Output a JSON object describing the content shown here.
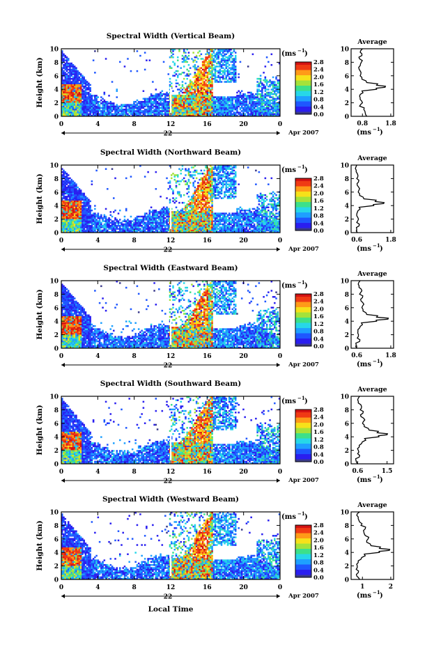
{
  "figure": {
    "x_title": "Local Time",
    "date_label": "Apr 2007",
    "day_label": "22",
    "y_label": "Height (km)",
    "cb_unit": "(ms",
    "cb_unit_exp": "−1",
    "cb_unit_close": ")",
    "avg_title": "Average",
    "avg_unit": "(ms",
    "avg_unit_exp": "−1",
    "avg_unit_close": ")",
    "colorbar_ticks": [
      "0.0",
      "0.4",
      "0.8",
      "1.2",
      "1.6",
      "2.0",
      "2.4",
      "2.8"
    ],
    "colorbar_colors": [
      "#3b3b8c",
      "#2a1ff0",
      "#1f57ff",
      "#1ea0ff",
      "#27d7e8",
      "#3de08a",
      "#a5e23a",
      "#f6e11a",
      "#ff9a18",
      "#f03a15",
      "#d31313"
    ],
    "background": "#ffffff"
  },
  "chart_data": [
    {
      "type": "heatmap",
      "title": "Spectral Width (Vertical Beam)",
      "xlabel": "Local Time",
      "ylabel": "Height (km)",
      "x_ticks": [
        "0",
        "4",
        "8",
        "12",
        "16",
        "20",
        "0"
      ],
      "xlim": [
        0,
        24
      ],
      "y_ticks": [
        "0",
        "2",
        "4",
        "6",
        "8",
        "10"
      ],
      "ylim": [
        0,
        10
      ],
      "colorbar": {
        "unit": "(ms^-1)",
        "range": [
          0.0,
          2.8
        ]
      },
      "average_profile": {
        "title": "Average",
        "xlabel": "(ms^-1)",
        "x_ticks": [
          "0.8",
          "1.8"
        ],
        "xlim": [
          0.4,
          1.9
        ],
        "height_km": [
          0,
          0.5,
          1,
          1.5,
          2,
          2.5,
          3,
          3.5,
          4,
          4.3,
          4.6,
          5,
          5.5,
          6,
          6.5,
          7,
          7.5,
          8,
          8.5,
          9,
          9.5,
          10
        ],
        "width": [
          0.95,
          0.9,
          0.85,
          0.7,
          0.8,
          0.72,
          0.7,
          0.82,
          1.3,
          1.6,
          1.3,
          0.95,
          0.78,
          0.72,
          0.75,
          0.68,
          0.72,
          0.76,
          0.7,
          0.78,
          0.72,
          0.8
        ]
      }
    },
    {
      "type": "heatmap",
      "title": "Spectral Width (Northward Beam)",
      "xlabel": "Local Time",
      "ylabel": "Height (km)",
      "x_ticks": [
        "0",
        "4",
        "8",
        "12",
        "16",
        "20",
        "0"
      ],
      "xlim": [
        0,
        24
      ],
      "y_ticks": [
        "0",
        "2",
        "4",
        "6",
        "8",
        "10"
      ],
      "ylim": [
        0,
        10
      ],
      "colorbar": {
        "unit": "(ms^-1)",
        "range": [
          0.0,
          2.8
        ]
      },
      "average_profile": {
        "title": "Average",
        "xlabel": "(ms^-1)",
        "x_ticks": [
          "0.6",
          "1.8"
        ],
        "xlim": [
          0.4,
          1.9
        ],
        "height_km": [
          0,
          0.5,
          1,
          1.5,
          2,
          2.5,
          3,
          3.5,
          4,
          4.3,
          4.6,
          5,
          5.5,
          6,
          6.5,
          7,
          7.5,
          8,
          8.5,
          9,
          9.5,
          10
        ],
        "width": [
          0.62,
          0.6,
          0.68,
          0.6,
          0.66,
          0.6,
          0.62,
          0.72,
          1.2,
          1.55,
          1.25,
          0.85,
          0.7,
          0.65,
          0.7,
          0.62,
          0.66,
          0.6,
          0.64,
          0.58,
          0.55,
          0.6
        ]
      }
    },
    {
      "type": "heatmap",
      "title": "Spectral Width (Eastward Beam)",
      "xlabel": "Local Time",
      "ylabel": "Height (km)",
      "x_ticks": [
        "0",
        "4",
        "8",
        "12",
        "16",
        "20",
        "0"
      ],
      "xlim": [
        0,
        24
      ],
      "y_ticks": [
        "0",
        "2",
        "4",
        "6",
        "8",
        "10"
      ],
      "ylim": [
        0,
        10
      ],
      "colorbar": {
        "unit": "(ms^-1)",
        "range": [
          0.0,
          2.8
        ]
      },
      "average_profile": {
        "title": "Average",
        "xlabel": "(ms^-1)",
        "x_ticks": [
          "0.6",
          "1.8"
        ],
        "xlim": [
          0.4,
          1.9
        ],
        "height_km": [
          0,
          0.5,
          1,
          1.5,
          2,
          2.5,
          3,
          3.5,
          4,
          4.3,
          4.6,
          5,
          5.5,
          6,
          6.5,
          7,
          7.5,
          8,
          8.5,
          9,
          9.5,
          10
        ],
        "width": [
          0.6,
          0.58,
          0.7,
          0.62,
          0.66,
          0.64,
          0.7,
          0.8,
          1.3,
          1.7,
          1.3,
          0.95,
          0.82,
          0.78,
          0.85,
          0.75,
          0.8,
          0.7,
          0.78,
          0.68,
          0.65,
          0.72
        ]
      }
    },
    {
      "type": "heatmap",
      "title": "Spectral Width (Southward Beam)",
      "xlabel": "Local Time",
      "ylabel": "Height (km)",
      "x_ticks": [
        "0",
        "4",
        "8",
        "12",
        "16",
        "20",
        "0"
      ],
      "xlim": [
        0,
        24
      ],
      "y_ticks": [
        "0",
        "2",
        "4",
        "6",
        "8",
        "10"
      ],
      "ylim": [
        0,
        10
      ],
      "colorbar": {
        "unit": "(ms^-1)",
        "range": [
          0.0,
          2.8
        ]
      },
      "average_profile": {
        "title": "Average",
        "xlabel": "(ms^-1)",
        "x_ticks": [
          "0.6",
          "1.5"
        ],
        "xlim": [
          0.4,
          1.7
        ],
        "height_km": [
          0,
          0.5,
          1,
          1.5,
          2,
          2.5,
          3,
          3.5,
          4,
          4.3,
          4.6,
          5,
          5.5,
          6,
          6.5,
          7,
          7.5,
          8,
          8.5,
          9,
          9.5,
          10
        ],
        "width": [
          0.6,
          0.55,
          0.65,
          0.6,
          0.62,
          0.65,
          0.72,
          0.85,
          1.25,
          1.5,
          1.2,
          0.95,
          0.8,
          0.75,
          0.82,
          0.7,
          0.76,
          0.68,
          0.72,
          0.62,
          0.6,
          0.66
        ]
      }
    },
    {
      "type": "heatmap",
      "title": "Spectral Width (Westward Beam)",
      "xlabel": "Local Time",
      "ylabel": "Height (km)",
      "x_ticks": [
        "0",
        "4",
        "8",
        "12",
        "16",
        "20",
        "0"
      ],
      "xlim": [
        0,
        24
      ],
      "y_ticks": [
        "0",
        "2",
        "4",
        "6",
        "8",
        "10"
      ],
      "ylim": [
        0,
        10
      ],
      "colorbar": {
        "unit": "(ms^-1)",
        "range": [
          0.0,
          2.8
        ]
      },
      "average_profile": {
        "title": "Average",
        "xlabel": "(ms^-1)",
        "x_ticks": [
          "1",
          "2"
        ],
        "xlim": [
          0.6,
          2.1
        ],
        "height_km": [
          0,
          0.5,
          1,
          1.5,
          2,
          2.5,
          3,
          3.5,
          4,
          4.3,
          4.6,
          5,
          5.5,
          6,
          6.5,
          7,
          7.5,
          8,
          8.5,
          9,
          9.5,
          10
        ],
        "width": [
          0.9,
          0.8,
          0.85,
          0.78,
          0.82,
          0.85,
          0.95,
          1.1,
          1.6,
          1.95,
          1.6,
          1.3,
          1.15,
          1.2,
          1.1,
          1.05,
          1.1,
          0.95,
          0.9,
          0.85,
          0.8,
          0.9
        ]
      }
    }
  ]
}
